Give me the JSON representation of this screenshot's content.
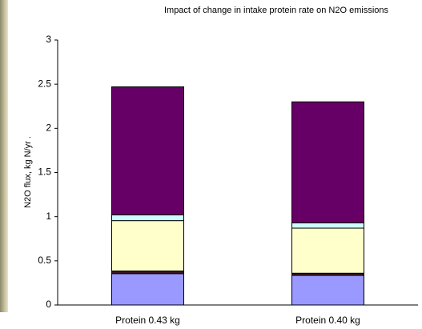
{
  "chart_data": {
    "type": "stacked_bar",
    "title": "Impact of change in intake protein rate on N2O emissions",
    "y_label": "N2O flux, kg N/yr .",
    "categories": [
      "Protein 0.43 kg",
      "Protein 0.40 kg"
    ],
    "series": [
      {
        "color": "#9999ff",
        "values": [
          0.355,
          0.335
        ]
      },
      {
        "color": "#3a1420",
        "values": [
          0.03,
          0.025
        ]
      },
      {
        "color": "#ffffcc",
        "values": [
          0.57,
          0.51
        ]
      },
      {
        "color": "#ccffff",
        "values": [
          0.065,
          0.06
        ]
      },
      {
        "color": "#660066",
        "values": [
          1.45,
          1.37
        ]
      }
    ],
    "ylim": [
      0,
      3
    ],
    "yticks": [
      0,
      0.5,
      1,
      1.5,
      2,
      2.5,
      3
    ],
    "grid": false
  }
}
